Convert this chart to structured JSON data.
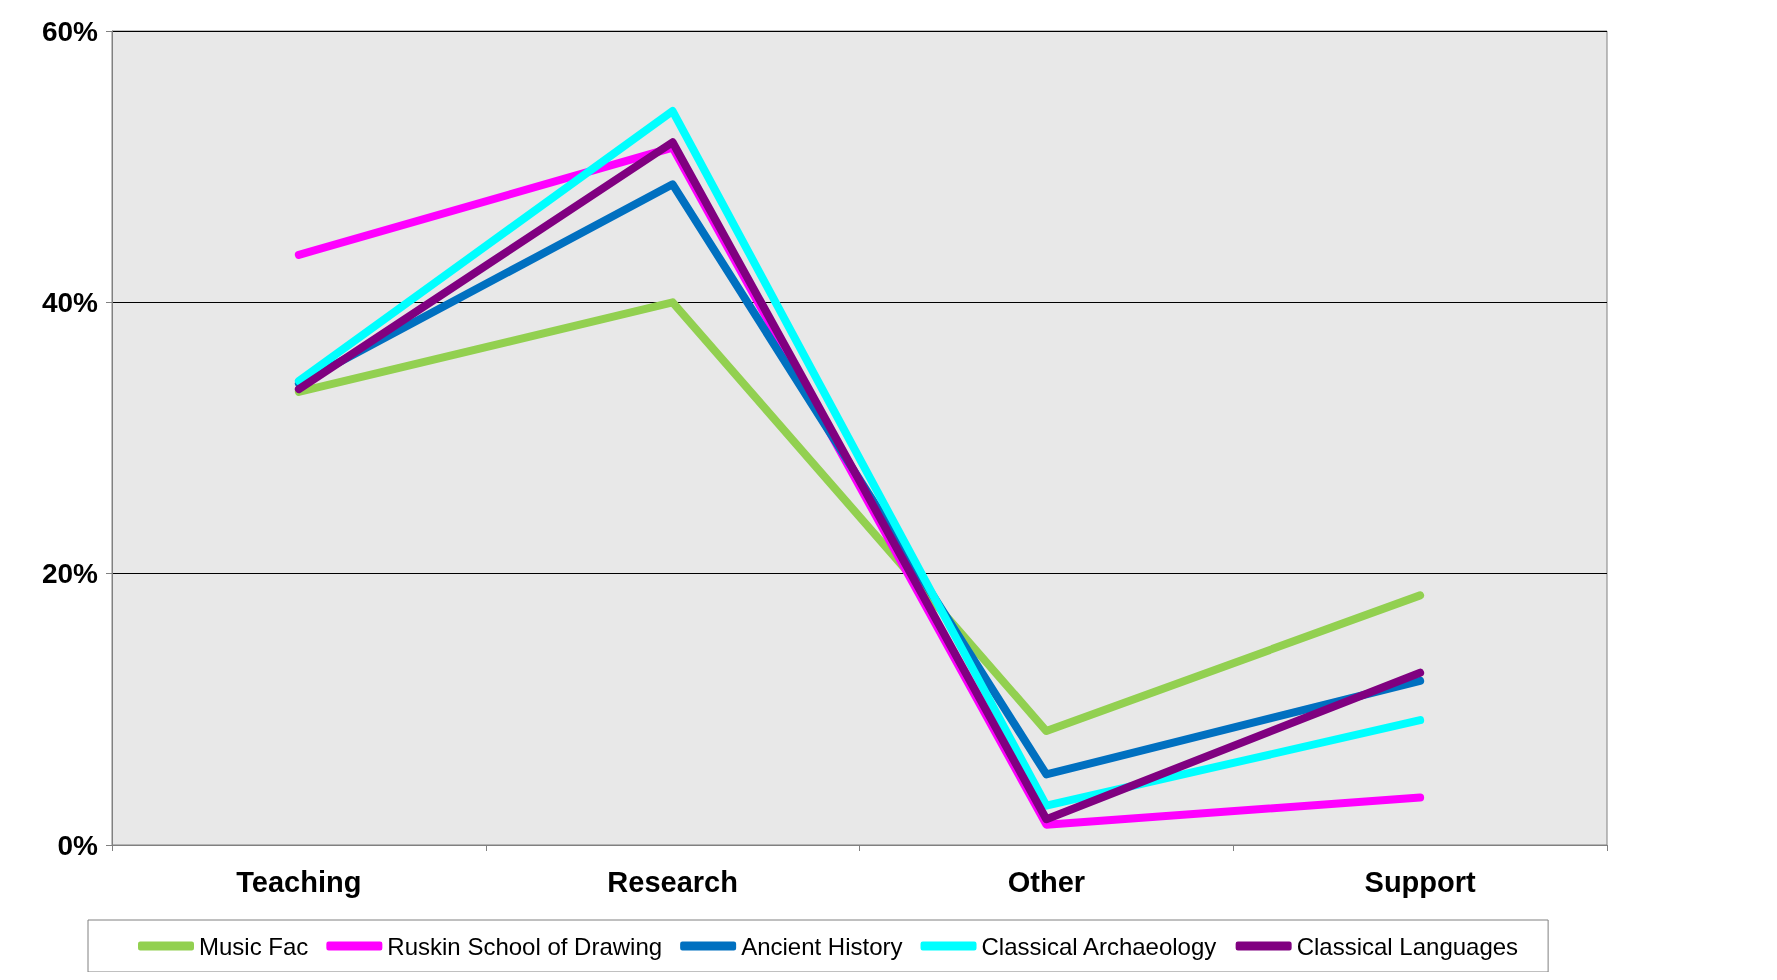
{
  "chart_data": {
    "type": "line",
    "categories": [
      "Teaching",
      "Research",
      "Other",
      "Support"
    ],
    "series": [
      {
        "name": "Music Fac",
        "color": "#92d050",
        "values": [
          33.4,
          40,
          8.4,
          18.4
        ]
      },
      {
        "name": "Ruskin School of Drawing",
        "color": "#ff00ff",
        "values": [
          43.5,
          51.4,
          1.5,
          3.5
        ]
      },
      {
        "name": "Ancient History",
        "color": "#0070c0",
        "values": [
          34,
          48.7,
          5.2,
          12.1
        ]
      },
      {
        "name": "Classical Archaeology",
        "color": "#00ffff",
        "values": [
          34.2,
          54.1,
          2.9,
          9.2
        ]
      },
      {
        "name": "Classical Languages",
        "color": "#800080",
        "values": [
          33.6,
          51.8,
          1.9,
          12.7
        ]
      }
    ],
    "ylim": [
      0,
      60
    ],
    "yticks": [
      {
        "value": 0,
        "label": "0%"
      },
      {
        "value": 20,
        "label": "20%"
      },
      {
        "value": 40,
        "label": "40%"
      },
      {
        "value": 60,
        "label": "60%"
      }
    ],
    "grid": "y",
    "legend": "bottom",
    "marker": "none",
    "line_style": "solid"
  }
}
